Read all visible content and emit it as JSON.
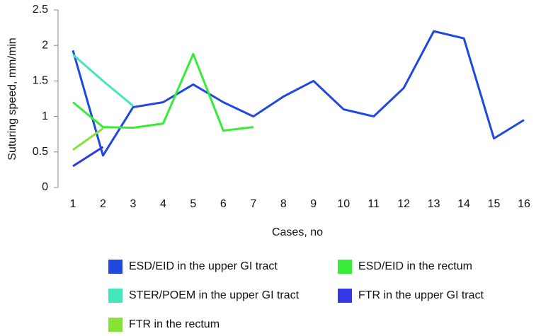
{
  "chart_data": {
    "type": "line",
    "y_label": "Suturing speed, mm/min",
    "x_label": "Cases, no",
    "categories": [
      "1",
      "2",
      "3",
      "4",
      "5",
      "6",
      "7",
      "8",
      "9",
      "10",
      "11",
      "12",
      "13",
      "14",
      "15",
      "16"
    ],
    "ylim": [
      0,
      2.5
    ],
    "yticks": [
      0,
      0.5,
      1,
      1.5,
      2,
      2.5
    ],
    "series": [
      {
        "name": "ESD/EID in the upper GI tract",
        "color": "#1f48e0",
        "values": [
          1.93,
          0.45,
          1.13,
          1.2,
          1.45,
          1.2,
          1.0,
          1.28,
          1.5,
          1.1,
          1.0,
          1.4,
          2.2,
          2.1,
          0.69,
          0.95
        ]
      },
      {
        "name": "ESD/EID in the rectum",
        "color": "#36ec36",
        "values": [
          1.2,
          0.85,
          0.84,
          0.9,
          1.88,
          0.8,
          0.85,
          null,
          null,
          null,
          null,
          null,
          null,
          null,
          null,
          null
        ]
      },
      {
        "name": "STER/POEM in the upper GI tract",
        "color": "#44e6bc",
        "values": [
          1.87,
          1.5,
          1.15,
          null,
          null,
          null,
          null,
          null,
          null,
          null,
          null,
          null,
          null,
          null,
          null,
          null
        ]
      },
      {
        "name": "FTR in the upper GI tract",
        "color": "#3338e6",
        "values": [
          0.3,
          0.57,
          null,
          null,
          null,
          null,
          null,
          null,
          null,
          null,
          null,
          null,
          null,
          null,
          null,
          null
        ]
      },
      {
        "name": "FTR in the rectum",
        "color": "#86e234",
        "values": [
          0.53,
          0.83,
          null,
          null,
          null,
          null,
          null,
          null,
          null,
          null,
          null,
          null,
          null,
          null,
          null,
          null
        ]
      }
    ]
  }
}
